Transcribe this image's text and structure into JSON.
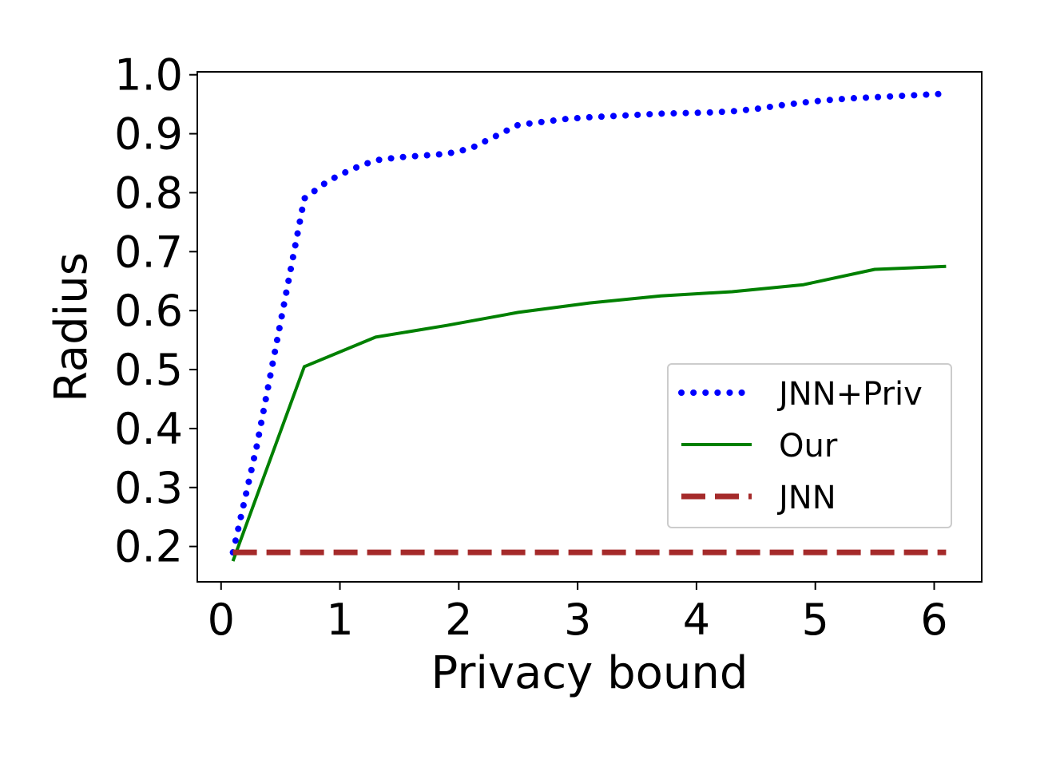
{
  "chart_data": {
    "type": "line",
    "xlabel": "Privacy bound",
    "ylabel": "Radius",
    "xlim": [
      -0.2,
      6.4
    ],
    "ylim": [
      0.14,
      1.005
    ],
    "xticks": [
      0,
      1,
      2,
      3,
      4,
      5,
      6
    ],
    "xtick_labels": [
      "0",
      "1",
      "2",
      "3",
      "4",
      "5",
      "6"
    ],
    "yticks": [
      0.2,
      0.3,
      0.4,
      0.5,
      0.6,
      0.7,
      0.8,
      0.9,
      1.0
    ],
    "ytick_labels": [
      "0.2",
      "0.3",
      "0.4",
      "0.5",
      "0.6",
      "0.7",
      "0.8",
      "0.9",
      "1.0"
    ],
    "grid": false,
    "legend_position": "center-right",
    "series": [
      {
        "name": "JNN+Priv",
        "style": "dotted",
        "color": "#0000ff",
        "x": [
          0.1,
          0.3,
          0.5,
          0.7,
          0.9,
          1.1,
          1.3,
          1.5,
          1.7,
          1.9,
          2.1,
          2.3,
          2.5,
          2.7,
          2.9,
          3.1,
          3.3,
          3.5,
          3.7,
          3.9,
          4.1,
          4.3,
          4.5,
          4.7,
          4.9,
          5.1,
          5.3,
          5.5,
          5.7,
          5.9,
          6.1
        ],
        "y": [
          0.19,
          0.37,
          0.58,
          0.79,
          0.82,
          0.84,
          0.855,
          0.86,
          0.863,
          0.866,
          0.875,
          0.895,
          0.915,
          0.92,
          0.925,
          0.928,
          0.93,
          0.932,
          0.934,
          0.935,
          0.936,
          0.938,
          0.942,
          0.948,
          0.953,
          0.957,
          0.96,
          0.962,
          0.964,
          0.966,
          0.968
        ]
      },
      {
        "name": "Our",
        "style": "solid",
        "color": "#008000",
        "x": [
          0.1,
          0.7,
          1.3,
          1.9,
          2.5,
          3.1,
          3.7,
          4.3,
          4.9,
          5.5,
          6.1
        ],
        "y": [
          0.175,
          0.505,
          0.555,
          0.575,
          0.597,
          0.613,
          0.625,
          0.632,
          0.644,
          0.67,
          0.675
        ]
      },
      {
        "name": "JNN",
        "style": "dashed",
        "color": "#a52a2a",
        "x": [
          0.1,
          6.1
        ],
        "y": [
          0.19,
          0.19
        ]
      }
    ]
  }
}
